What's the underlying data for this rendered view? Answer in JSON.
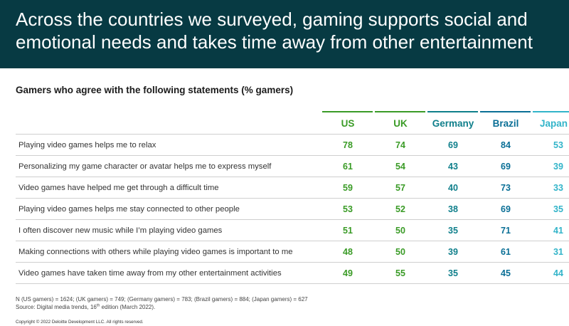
{
  "header": {
    "title": "Across the countries we surveyed, gaming supports social and emotional needs and takes time away from other entertainment",
    "background_color": "#073a43"
  },
  "chart_data": {
    "type": "table",
    "title": "Gamers who agree with the following statements (% gamers)",
    "columns": [
      "US",
      "UK",
      "Germany",
      "Brazil",
      "Japan"
    ],
    "column_colors": [
      "#3a9b26",
      "#3a9b26",
      "#0f7f8b",
      "#0a6f96",
      "#32b4c9"
    ],
    "rows": [
      {
        "statement": "Playing video games helps me to relax",
        "values": [
          78,
          74,
          69,
          84,
          53
        ]
      },
      {
        "statement": "Personalizing my game character or avatar helps me to express myself",
        "values": [
          61,
          54,
          43,
          69,
          39
        ]
      },
      {
        "statement": "Video games have helped me get through a difficult time",
        "values": [
          59,
          57,
          40,
          73,
          33
        ]
      },
      {
        "statement": "Playing video games helps me stay connected to other people",
        "values": [
          53,
          52,
          38,
          69,
          35
        ]
      },
      {
        "statement": "I often discover new music while I’m playing video games",
        "values": [
          51,
          50,
          35,
          71,
          41
        ]
      },
      {
        "statement": "Making connections with others while playing video games is important to me",
        "values": [
          48,
          50,
          39,
          61,
          31
        ]
      },
      {
        "statement": "Video games have taken time away from my other entertainment activities",
        "values": [
          49,
          55,
          35,
          45,
          44
        ]
      }
    ]
  },
  "footer": {
    "sample_note": "N (US gamers) = 1624; (UK gamers) = 749; (Germany gamers) = 783; (Brazil gamers) = 884; (Japan gamers) = 627",
    "source_prefix": "Source: Digital media trends, 16",
    "source_sup": "th",
    "source_suffix": " edition (March 2022).",
    "copyright": "Copyright © 2022 Deloitte Development LLC. All rights reserved."
  }
}
